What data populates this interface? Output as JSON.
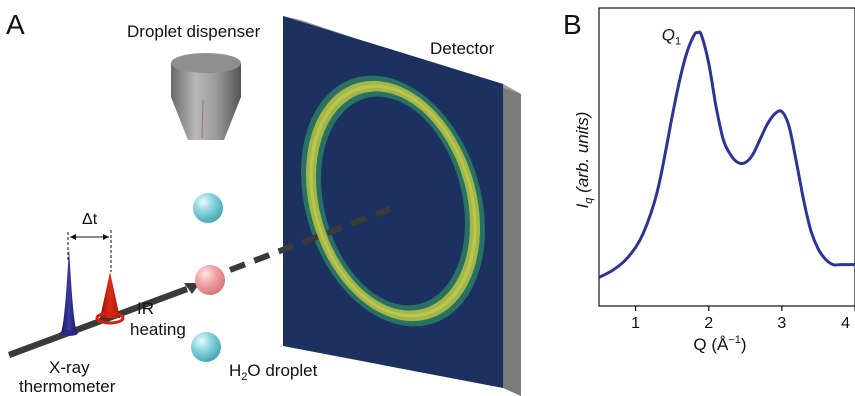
{
  "panel_a": {
    "letter": "A",
    "labels": {
      "dispenser": "Droplet dispenser",
      "detector": "Detector",
      "delta_t": "Δt",
      "ir_line1": "IR",
      "ir_line2": "heating",
      "xray_line1": "X-ray",
      "xray_line2": "thermometer",
      "droplet_prefix": "H",
      "droplet_sub": "2",
      "droplet_suffix": "O droplet"
    },
    "colors": {
      "xray_pulse": "#2a2a8a",
      "ir_pulse": "#d62010",
      "droplet_cold": "#7fd3dd",
      "droplet_hot": "#f2a3a8",
      "detector_face": "#1f3566",
      "ring": "#c8d44a"
    }
  },
  "panel_b": {
    "letter": "B",
    "chart_data": {
      "type": "line",
      "xlabel_main": "Q (Å",
      "xlabel_sup": "−1",
      "xlabel_end": ")",
      "ylabel_main": "I",
      "ylabel_sub": "q",
      "ylabel_rest": " (arb. units)",
      "xlim": [
        0.5,
        4.0
      ],
      "ylim": [
        0,
        1
      ],
      "xticks": [
        1,
        2,
        3,
        4
      ],
      "xtick_labels": [
        "1",
        "2",
        "3",
        "4"
      ],
      "peak_label_main": "Q",
      "peak_label_sub": "1",
      "peak_x": 1.85,
      "series": [
        {
          "color": "#2c3596",
          "x": [
            0.5,
            0.7,
            0.9,
            1.1,
            1.3,
            1.5,
            1.6,
            1.7,
            1.8,
            1.85,
            1.9,
            2.0,
            2.1,
            2.2,
            2.3,
            2.4,
            2.5,
            2.6,
            2.7,
            2.8,
            2.9,
            3.0,
            3.1,
            3.2,
            3.3,
            3.4,
            3.5,
            3.6,
            3.7,
            3.8,
            3.9,
            4.0
          ],
          "y": [
            0.03,
            0.06,
            0.11,
            0.2,
            0.37,
            0.66,
            0.8,
            0.91,
            0.98,
            0.99,
            0.98,
            0.87,
            0.7,
            0.57,
            0.51,
            0.48,
            0.48,
            0.51,
            0.57,
            0.63,
            0.67,
            0.68,
            0.62,
            0.48,
            0.33,
            0.21,
            0.14,
            0.1,
            0.08,
            0.08,
            0.08,
            0.08
          ]
        }
      ]
    }
  }
}
